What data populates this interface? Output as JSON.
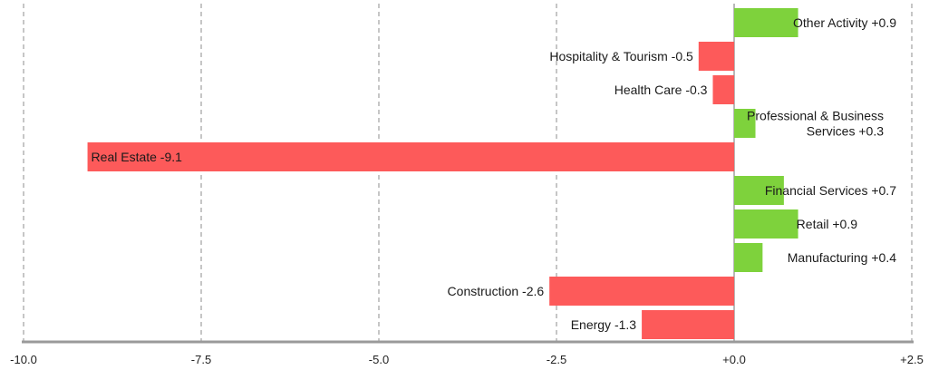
{
  "chart_data": {
    "type": "bar",
    "orientation": "horizontal",
    "title": "",
    "xlabel": "",
    "ylabel": "",
    "xlim": [
      -10,
      2.5
    ],
    "grid": true,
    "x_ticks": [
      {
        "value": -10,
        "label": "-10.0"
      },
      {
        "value": -7.5,
        "label": "-7.5"
      },
      {
        "value": -5,
        "label": "-5.0"
      },
      {
        "value": -2.5,
        "label": "-2.5"
      },
      {
        "value": 0,
        "label": "+0.0"
      },
      {
        "value": 2.5,
        "label": "+2.5"
      }
    ],
    "categories": [
      "Other Activity",
      "Hospitality & Tourism",
      "Health Care",
      "Professional & Business Services",
      "Real Estate",
      "Financial Services",
      "Retail",
      "Manufacturing",
      "Construction",
      "Energy"
    ],
    "values": [
      0.9,
      -0.5,
      -0.3,
      0.3,
      -9.1,
      0.7,
      0.9,
      0.4,
      -2.6,
      -1.3
    ],
    "labels": [
      [
        "Other Activity +0.9"
      ],
      [
        "Hospitality & Tourism -0.5"
      ],
      [
        "Health Care -0.3"
      ],
      [
        "Professional & Business",
        "Services +0.3"
      ],
      [
        "Real Estate -9.1"
      ],
      [
        "Financial Services +0.7"
      ],
      [
        "Retail +0.9"
      ],
      [
        "Manufacturing +0.4"
      ],
      [
        "Construction -2.6"
      ],
      [
        "Energy -1.3"
      ]
    ],
    "colors": {
      "positive": "#7ed23c",
      "negative": "#fd5a5a",
      "grid": "#8c8c8c",
      "axis": "#9a9a9a",
      "zero_line": "#a0a0a0"
    }
  }
}
